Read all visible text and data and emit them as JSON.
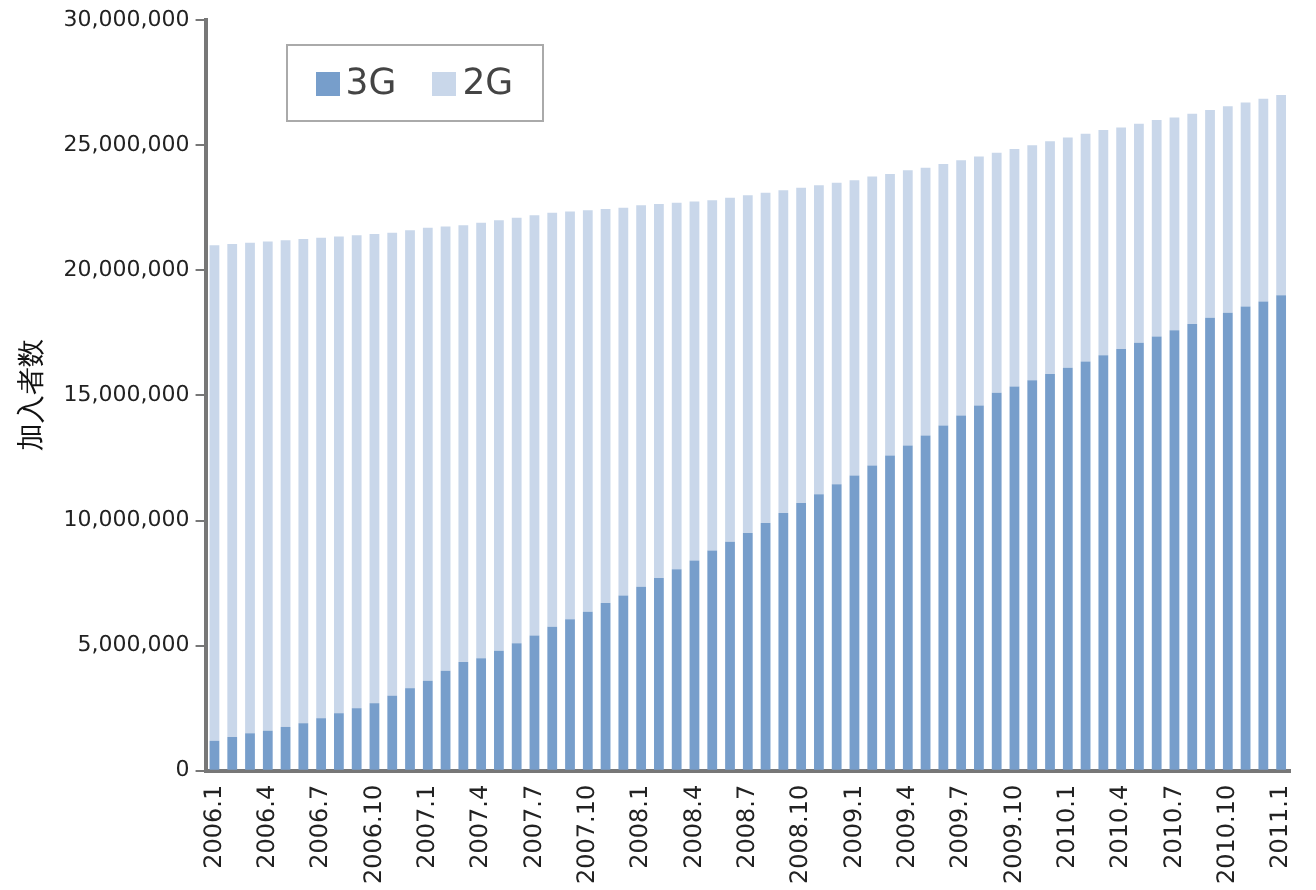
{
  "chart_data": {
    "type": "bar",
    "stacked": true,
    "ylabel": "加入者数",
    "categories": [
      "2006.1",
      null,
      null,
      "2006.4",
      null,
      null,
      "2006.7",
      null,
      null,
      "2006.10",
      null,
      null,
      "2007.1",
      null,
      null,
      "2007.4",
      null,
      null,
      "2007.7",
      null,
      null,
      "2007.10",
      null,
      null,
      "2008.1",
      null,
      null,
      "2008.4",
      null,
      null,
      "2008.7",
      null,
      null,
      "2008.10",
      null,
      null,
      "2009.1",
      null,
      null,
      "2009.4",
      null,
      null,
      "2009.7",
      null,
      null,
      "2009.10",
      null,
      null,
      "2010.1",
      null,
      null,
      "2010.4",
      null,
      null,
      "2010.7",
      null,
      null,
      "2010.10",
      null,
      null,
      "2011.1"
    ],
    "series": [
      {
        "name": "3G",
        "color": "#779ecb",
        "values": [
          1200000,
          1350000,
          1500000,
          1600000,
          1750000,
          1900000,
          2100000,
          2300000,
          2500000,
          2700000,
          3000000,
          3300000,
          3600000,
          4000000,
          4350000,
          4500000,
          4800000,
          5100000,
          5400000,
          5750000,
          6050000,
          6350000,
          6700000,
          7000000,
          7350000,
          7700000,
          8050000,
          8400000,
          8800000,
          9150000,
          9500000,
          9900000,
          10300000,
          10700000,
          11050000,
          11450000,
          11800000,
          12200000,
          12600000,
          13000000,
          13400000,
          13800000,
          14200000,
          14600000,
          15100000,
          15350000,
          15600000,
          15850000,
          16100000,
          16350000,
          16600000,
          16850000,
          17100000,
          17350000,
          17600000,
          17850000,
          18100000,
          18300000,
          18550000,
          18750000,
          19000000
        ]
      },
      {
        "name": "2G",
        "color": "#c9d7ea",
        "values": [
          19800000,
          19700000,
          19600000,
          19550000,
          19450000,
          19350000,
          19200000,
          19050000,
          18900000,
          18750000,
          18500000,
          18300000,
          18100000,
          17750000,
          17450000,
          17400000,
          17200000,
          17000000,
          16800000,
          16550000,
          16300000,
          16050000,
          15750000,
          15500000,
          15250000,
          14950000,
          14650000,
          14350000,
          14000000,
          13750000,
          13500000,
          13200000,
          12900000,
          12600000,
          12350000,
          12050000,
          11800000,
          11550000,
          11250000,
          11000000,
          10700000,
          10450000,
          10200000,
          9950000,
          9600000,
          9500000,
          9400000,
          9300000,
          9200000,
          9100000,
          9000000,
          8850000,
          8750000,
          8650000,
          8500000,
          8400000,
          8300000,
          8250000,
          8150000,
          8100000,
          8000000
        ]
      }
    ],
    "ylim": [
      0,
      30000000
    ],
    "yticks": [
      0,
      {
        "value": 5000000,
        "label": "5,000,000"
      },
      {
        "value": 10000000,
        "label": "10,000,000"
      },
      {
        "value": 15000000,
        "label": "15,000,000"
      },
      {
        "value": 20000000,
        "label": "20,000,000"
      },
      {
        "value": 25000000,
        "label": "25,000,000"
      },
      {
        "value": 30000000,
        "label": "30,000,000"
      }
    ],
    "grid": false,
    "legend": "top left"
  }
}
